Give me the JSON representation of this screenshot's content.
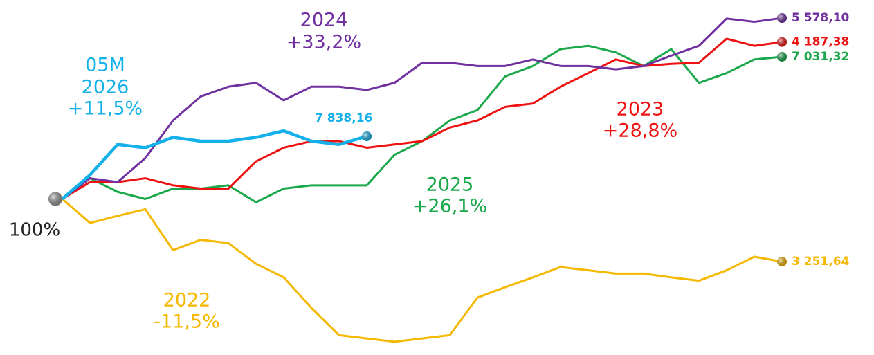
{
  "chart_data": {
    "type": "line",
    "start_label": "100%",
    "xlim": [
      0,
      26
    ],
    "ylim": [
      72,
      136
    ],
    "series": [
      {
        "name": "2022",
        "change_label": "-11,5%",
        "end_label": "3 251,64",
        "color": "#f5b800",
        "values": [
          100,
          95.6,
          96.9,
          98.1,
          90.6,
          92.5,
          91.9,
          88.1,
          85.6,
          80,
          75,
          74.4,
          73.8,
          74.4,
          75,
          81.9,
          83.8,
          85.6,
          87.5,
          86.9,
          86.3,
          86.3,
          85.6,
          85,
          86.9,
          89.4,
          88.5
        ]
      },
      {
        "name": "2025",
        "change_label": "+26,1%",
        "end_label": "7 031,32",
        "color": "#1aa84a",
        "values": [
          100,
          103.8,
          101.3,
          100,
          101.9,
          101.9,
          102.5,
          99.4,
          101.9,
          102.5,
          102.5,
          102.5,
          108.1,
          110.6,
          114.4,
          116.3,
          122.5,
          124.4,
          127.5,
          128.1,
          126.9,
          124.4,
          127.5,
          121.3,
          123.1,
          125.6,
          126.1
        ]
      },
      {
        "name": "2023",
        "change_label": "+28,8%",
        "end_label": "4 187,38",
        "color": "#ee1111",
        "values": [
          100,
          103.1,
          103.1,
          103.8,
          102.5,
          101.9,
          101.9,
          106.9,
          109.4,
          110.6,
          110.6,
          109.4,
          110,
          110.6,
          113.1,
          114.4,
          116.9,
          117.5,
          120.6,
          123.1,
          125.6,
          124.4,
          124.8,
          125,
          129.4,
          128.1,
          128.8
        ]
      },
      {
        "name": "2024",
        "change_label": "+33,2%",
        "end_label": "5 578,10",
        "color": "#7030a0",
        "values": [
          100,
          103.8,
          103.1,
          107.5,
          114.4,
          118.8,
          120.6,
          121.3,
          118.1,
          120.6,
          120.6,
          120,
          121.3,
          125,
          125,
          124.4,
          124.4,
          125.6,
          124.4,
          124.4,
          123.8,
          124.4,
          126.3,
          128.1,
          133.1,
          132.5,
          133.2
        ]
      },
      {
        "name": "2026",
        "period": "05M",
        "change_label": "+11,5%",
        "end_label": "7 838,16",
        "color": "#14b0ea",
        "values": [
          100,
          104.4,
          110,
          109.4,
          111.3,
          110.6,
          110.6,
          111.3,
          112.5,
          110.6,
          110,
          111.5
        ]
      }
    ]
  }
}
